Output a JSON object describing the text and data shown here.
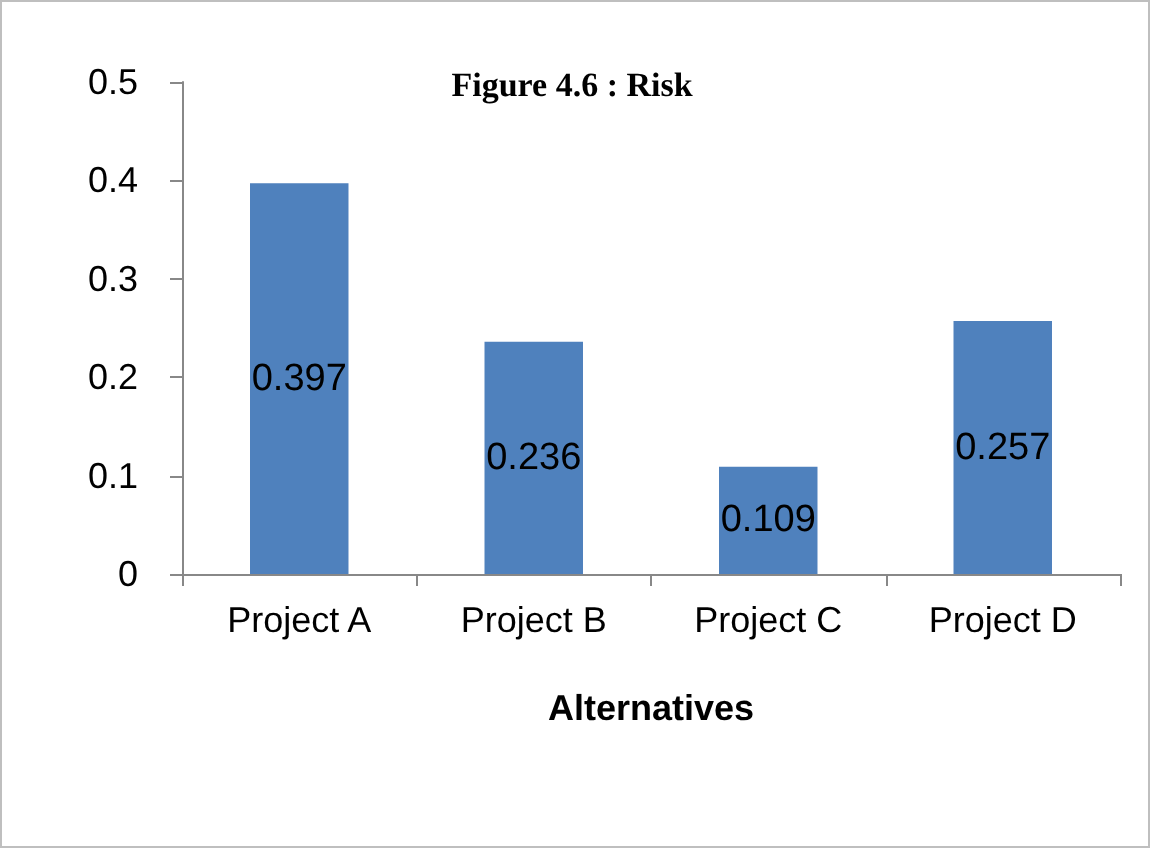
{
  "chart_data": {
    "type": "bar",
    "title": "Figure 4.6 : Risk",
    "xlabel": "Alternatives",
    "categories": [
      "Project A",
      "Project B",
      "Project C",
      "Project D"
    ],
    "values": [
      0.397,
      0.236,
      0.109,
      0.257
    ],
    "color": "#4f81bd",
    "ylim": [
      0,
      0.5
    ],
    "yticks": [
      0,
      0.1,
      0.2,
      0.3,
      0.4,
      0.5
    ],
    "data_labels": true
  }
}
